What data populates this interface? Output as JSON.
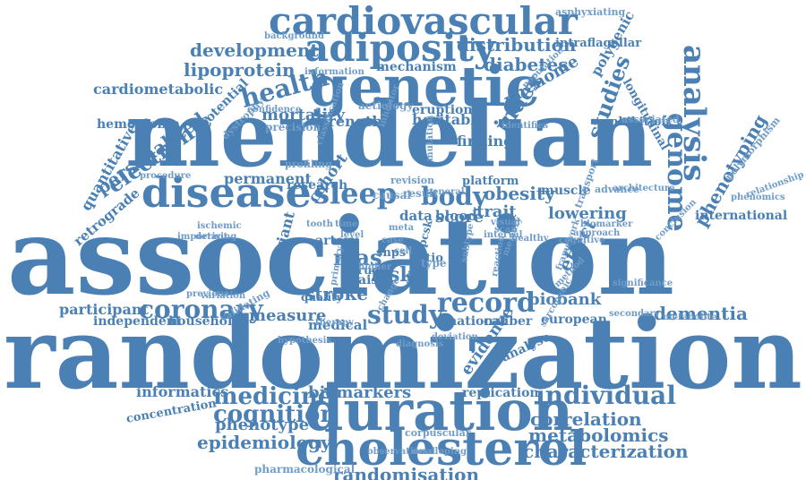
{
  "colors": {
    "primary": "#4a80b4",
    "light": "#6f9cc8",
    "background": "#ffffff"
  },
  "words": [
    {
      "text": "association",
      "weight": 10,
      "rotation": 0
    },
    {
      "text": "randomization",
      "weight": 10,
      "rotation": 0
    },
    {
      "text": "mendelian",
      "weight": 9,
      "rotation": 0
    },
    {
      "text": "genetic",
      "weight": 7,
      "rotation": 0
    },
    {
      "text": "cardiovascular",
      "weight": 6,
      "rotation": 0
    },
    {
      "text": "duration",
      "weight": 6,
      "rotation": 0
    },
    {
      "text": "cholesterol",
      "weight": 6,
      "rotation": 0
    },
    {
      "text": "adiposity",
      "weight": 6,
      "rotation": 0
    },
    {
      "text": "disease",
      "weight": 6,
      "rotation": 0
    },
    {
      "text": "analysis",
      "weight": 6,
      "rotation": 90
    },
    {
      "text": "genome",
      "weight": 5,
      "rotation": 90
    },
    {
      "text": "sleep",
      "weight": 5,
      "rotation": 0
    },
    {
      "text": "body",
      "weight": 4,
      "rotation": 0
    },
    {
      "text": "health",
      "weight": 4,
      "rotation": -15
    },
    {
      "text": "electronic",
      "weight": 4,
      "rotation": -35
    },
    {
      "text": "individual",
      "weight": 4,
      "rotation": 0
    },
    {
      "text": "study",
      "weight": 4,
      "rotation": 0
    },
    {
      "text": "record",
      "weight": 4,
      "rotation": 0
    },
    {
      "text": "coronary",
      "weight": 4,
      "rotation": 0
    },
    {
      "text": "index",
      "weight": 4,
      "rotation": -55
    },
    {
      "text": "studies",
      "weight": 4,
      "rotation": -70
    },
    {
      "text": "phenotyping",
      "weight": 3,
      "rotation": -60
    },
    {
      "text": "distribution",
      "weight": 3,
      "rotation": 0
    },
    {
      "text": "development",
      "weight": 3,
      "rotation": 0
    },
    {
      "text": "lipoprotein",
      "weight": 3,
      "rotation": 0
    },
    {
      "text": "diabetes",
      "weight": 3,
      "rotation": 0
    },
    {
      "text": "phenome",
      "weight": 3,
      "rotation": -30
    },
    {
      "text": "biobank",
      "weight": 3,
      "rotation": 0
    },
    {
      "text": "dementia",
      "weight": 3,
      "rotation": 0
    },
    {
      "text": "medicine",
      "weight": 3,
      "rotation": 0
    },
    {
      "text": "cognition",
      "weight": 3,
      "rotation": 0
    },
    {
      "text": "correlation",
      "weight": 3,
      "rotation": 0
    },
    {
      "text": "metabolomics",
      "weight": 3,
      "rotation": 0
    },
    {
      "text": "characterization",
      "weight": 3,
      "rotation": 0
    },
    {
      "text": "epidemiology",
      "weight": 3,
      "rotation": 0
    },
    {
      "text": "randomisation",
      "weight": 3,
      "rotation": 0
    },
    {
      "text": "stroke",
      "weight": 3,
      "rotation": 0
    },
    {
      "text": "obesity",
      "weight": 3,
      "rotation": 0
    },
    {
      "text": "lowering",
      "weight": 3,
      "rotation": 0
    },
    {
      "text": "mortality",
      "weight": 3,
      "rotation": 0
    },
    {
      "text": "personalized",
      "weight": 3,
      "rotation": -35
    },
    {
      "text": "mas",
      "weight": 3,
      "rotation": 0
    },
    {
      "text": "risk",
      "weight": 3,
      "rotation": 0
    },
    {
      "text": "score",
      "weight": 3,
      "rotation": 0
    },
    {
      "text": "trait",
      "weight": 3,
      "rotation": 0
    },
    {
      "text": "effect",
      "weight": 3,
      "rotation": -60
    },
    {
      "text": "evidence",
      "weight": 3,
      "rotation": -55
    },
    {
      "text": "measure",
      "weight": 3,
      "rotation": 0
    },
    {
      "text": "biomarkers",
      "weight": 2,
      "rotation": 0
    },
    {
      "text": "informatics",
      "weight": 2,
      "rotation": 0
    },
    {
      "text": "phenotype",
      "weight": 2,
      "rotation": 0
    },
    {
      "text": "participant",
      "weight": 2,
      "rotation": 0
    },
    {
      "text": "independent",
      "weight": 2,
      "rotation": 0
    },
    {
      "text": "household",
      "weight": 2,
      "rotation": 0
    },
    {
      "text": "concentration",
      "weight": 2,
      "rotation": -10
    },
    {
      "text": "cardiometabolic",
      "weight": 2,
      "rotation": 0
    },
    {
      "text": "hemoglobin",
      "weight": 2,
      "rotation": 0
    },
    {
      "text": "quantitative",
      "weight": 2,
      "rotation": -60
    },
    {
      "text": "retrograde",
      "weight": 2,
      "rotation": -40
    },
    {
      "text": "potential",
      "weight": 2,
      "rotation": -45
    },
    {
      "text": "permanent",
      "weight": 2,
      "rotation": 0
    },
    {
      "text": "research",
      "weight": 2,
      "rotation": 0
    },
    {
      "text": "cohort",
      "weight": 2,
      "rotation": -55
    },
    {
      "text": "strength",
      "weight": 2,
      "rotation": 0
    },
    {
      "text": "heritable",
      "weight": 2,
      "rotation": 0
    },
    {
      "text": "finding",
      "weight": 2,
      "rotation": 0
    },
    {
      "text": "blood",
      "weight": 2,
      "rotation": 0
    },
    {
      "text": "data",
      "weight": 2,
      "rotation": 0
    },
    {
      "text": "eruption",
      "weight": 2,
      "rotation": 0
    },
    {
      "text": "mechanism",
      "weight": 2,
      "rotation": 0
    },
    {
      "text": "polygenic",
      "weight": 2,
      "rotation": -60
    },
    {
      "text": "inhibition",
      "weight": 2,
      "rotation": 0
    },
    {
      "text": "longitudinal",
      "weight": 2,
      "rotation": 60
    },
    {
      "text": "intraflagellar",
      "weight": 2,
      "rotation": 0
    },
    {
      "text": "background",
      "weight": 1,
      "rotation": 0
    },
    {
      "text": "asphyxiating",
      "weight": 1,
      "rotation": 0
    },
    {
      "text": "international",
      "weight": 2,
      "rotation": 0
    },
    {
      "text": "replication",
      "weight": 2,
      "rotation": 0
    },
    {
      "text": "analyse",
      "weight": 2,
      "rotation": -25
    },
    {
      "text": "european",
      "weight": 2,
      "rotation": 0
    },
    {
      "text": "pharmacological",
      "weight": 1,
      "rotation": 0
    },
    {
      "text": "corpuscular",
      "weight": 1,
      "rotation": 0
    },
    {
      "text": "observational",
      "weight": 1,
      "rotation": 0
    },
    {
      "text": "developing",
      "weight": 1,
      "rotation": 0
    },
    {
      "text": "medical",
      "weight": 2,
      "rotation": 0
    },
    {
      "text": "national",
      "weight": 2,
      "rotation": 0
    },
    {
      "text": "caliber",
      "weight": 2,
      "rotation": 0
    },
    {
      "text": "muscle",
      "weight": 2,
      "rotation": 0
    },
    {
      "text": "platform",
      "weight": 2,
      "rotation": 0
    },
    {
      "text": "advance",
      "weight": 1,
      "rotation": 0
    },
    {
      "text": "transport",
      "weight": 1,
      "rotation": -70
    },
    {
      "text": "polymorphism",
      "weight": 1,
      "rotation": -50
    },
    {
      "text": "phenomics",
      "weight": 1,
      "rotation": 0
    },
    {
      "text": "relationship",
      "weight": 1,
      "rotation": -20
    },
    {
      "text": "conclusion",
      "weight": 1,
      "rotation": -45
    },
    {
      "text": "approach",
      "weight": 1,
      "rotation": 0
    },
    {
      "text": "method",
      "weight": 1,
      "rotation": -45
    },
    {
      "text": "framework",
      "weight": 1,
      "rotation": -70
    },
    {
      "text": "quality",
      "weight": 2,
      "rotation": 0
    },
    {
      "text": "variant",
      "weight": 2,
      "rotation": -75
    },
    {
      "text": "snps",
      "weight": 2,
      "rotation": 0
    },
    {
      "text": "drug",
      "weight": 2,
      "rotation": 0
    },
    {
      "text": "waist",
      "weight": 2,
      "rotation": 0
    },
    {
      "text": "ratio",
      "weight": 2,
      "rotation": 0
    },
    {
      "text": "type",
      "weight": 1,
      "rotation": 0
    },
    {
      "text": "statin",
      "weight": 2,
      "rotation": -75
    },
    {
      "text": "pcsk",
      "weight": 2,
      "rotation": -75
    },
    {
      "text": "artery",
      "weight": 2,
      "rotation": 0
    },
    {
      "text": "tooth",
      "weight": 1,
      "rotation": 0
    },
    {
      "text": "case",
      "weight": 1,
      "rotation": 0
    },
    {
      "text": "cell",
      "weight": 1,
      "rotation": 0
    },
    {
      "text": "higher",
      "weight": 1,
      "rotation": 0
    },
    {
      "text": "level",
      "weight": 1,
      "rotation": 0
    },
    {
      "text": "time",
      "weight": 1,
      "rotation": 0
    },
    {
      "text": "causal",
      "weight": 1,
      "rotation": 0
    },
    {
      "text": "result",
      "weight": 1,
      "rotation": 0
    },
    {
      "text": "general",
      "weight": 1,
      "rotation": 0
    },
    {
      "text": "identifies",
      "weight": 1,
      "rotation": 0
    },
    {
      "text": "dystrophy",
      "weight": 1,
      "rotation": -45
    },
    {
      "text": "confidence",
      "weight": 1,
      "rotation": 0
    },
    {
      "text": "precision",
      "weight": 1,
      "rotation": 0
    },
    {
      "text": "aetiology",
      "weight": 1,
      "rotation": 0
    },
    {
      "text": "mutation",
      "weight": 1,
      "rotation": -90
    },
    {
      "text": "profiling",
      "weight": 1,
      "rotation": 0
    },
    {
      "text": "procedure",
      "weight": 1,
      "rotation": 0
    },
    {
      "text": "ischemic",
      "weight": 1,
      "rotation": 0
    },
    {
      "text": "deriving",
      "weight": 1,
      "rotation": 0
    },
    {
      "text": "important",
      "weight": 1,
      "rotation": 0
    },
    {
      "text": "variation",
      "weight": 1,
      "rotation": 0
    },
    {
      "text": "previous",
      "weight": 1,
      "rotation": 0
    },
    {
      "text": "validating",
      "weight": 1,
      "rotation": -30
    },
    {
      "text": "therapy",
      "weight": 1,
      "rotation": 0
    },
    {
      "text": "secondary",
      "weight": 1,
      "rotation": 0
    },
    {
      "text": "metabolite",
      "weight": 1,
      "rotation": 0
    },
    {
      "text": "significance",
      "weight": 1,
      "rotation": 0
    },
    {
      "text": "architecture",
      "weight": 1,
      "rotation": 0
    },
    {
      "text": "associated",
      "weight": 1,
      "rotation": 0
    },
    {
      "text": "information",
      "weight": 1,
      "rotation": 0
    },
    {
      "text": "population",
      "weight": 1,
      "rotation": -45
    },
    {
      "text": "healthy",
      "weight": 1,
      "rotation": 0
    },
    {
      "text": "memory",
      "weight": 1,
      "rotation": -70
    },
    {
      "text": "reaction",
      "weight": 1,
      "rotation": -80
    },
    {
      "text": "subtype",
      "weight": 1,
      "rotation": -80
    },
    {
      "text": "change",
      "weight": 1,
      "rotation": -60
    },
    {
      "text": "sarcopenic",
      "weight": 1,
      "rotation": -60
    },
    {
      "text": "revision",
      "weight": 1,
      "rotation": 0
    },
    {
      "text": "meta",
      "weight": 1,
      "rotation": 0
    },
    {
      "text": "primary",
      "weight": 1,
      "rotation": -80
    },
    {
      "text": "biomarker",
      "weight": 1,
      "rotation": 0
    },
    {
      "text": "cognitive",
      "weight": 1,
      "rotation": 0
    },
    {
      "text": "interval",
      "weight": 1,
      "rotation": 0
    },
    {
      "text": "inhibitor",
      "weight": 1,
      "rotation": -70
    },
    {
      "text": "classification",
      "weight": 1,
      "rotation": -70
    },
    {
      "text": "deviation",
      "weight": 1,
      "rotation": 0
    },
    {
      "text": "diagnosis",
      "weight": 1,
      "rotation": 0
    },
    {
      "text": "visual",
      "weight": 1,
      "rotation": 0
    },
    {
      "text": "scan",
      "weight": 1,
      "rotation": 0
    },
    {
      "text": "hypothesis",
      "weight": 1,
      "rotation": 0
    }
  ]
}
